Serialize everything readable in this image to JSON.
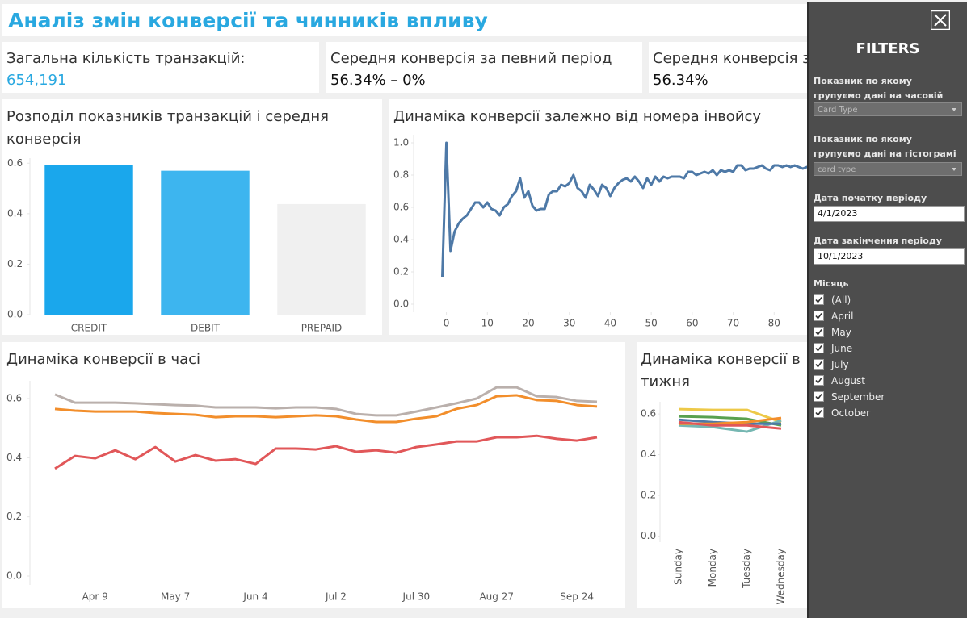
{
  "header": {
    "title": "Аналіз змін конверсії та чинників впливу"
  },
  "kpis": [
    {
      "label": "Загальна кількість транзакцій:",
      "value": "654,191"
    },
    {
      "label": "Середня конверсія за певний період",
      "value": "56.34% – 0%"
    },
    {
      "label": "Середня конверсія з",
      "value": "56.34%"
    }
  ],
  "chart_data": [
    {
      "type": "bar",
      "title": "Розподіл показників транзакцій і середня конверсія",
      "categories": [
        "CREDIT",
        "DEBIT",
        "PREPAID"
      ],
      "values": [
        0.593,
        0.57,
        0.438
      ],
      "colors": [
        "#1aa7ec",
        "#3db5ef",
        "#f0f0f0"
      ],
      "ylim": [
        0,
        0.62
      ],
      "yticks": [
        {
          "value": 0,
          "label": "0.0"
        },
        0.2,
        0.4,
        0.6
      ],
      "grid": false
    },
    {
      "type": "line",
      "title": "Динаміка конверсії залежно від номера інвойсу",
      "x": [
        -1,
        0,
        1,
        2,
        3,
        4,
        5,
        6,
        7,
        8,
        9,
        10,
        11,
        12,
        13,
        14,
        15,
        16,
        17,
        18,
        19,
        20,
        21,
        22,
        23,
        24,
        25,
        26,
        27,
        28,
        29,
        30,
        31,
        32,
        33,
        34,
        35,
        36,
        37,
        38,
        39,
        40,
        41,
        42,
        43,
        44,
        45,
        46,
        47,
        48,
        49,
        50,
        51,
        52,
        53,
        54,
        55,
        56,
        57,
        58,
        59,
        60,
        61,
        62,
        63,
        64,
        65,
        66,
        67,
        68,
        69,
        70,
        71,
        72,
        73,
        74,
        75,
        76,
        77,
        78,
        79,
        80,
        81,
        82,
        83,
        84,
        85,
        86,
        87,
        88,
        89
      ],
      "series": [
        {
          "color": "#4e79a7",
          "values": [
            0.17,
            1.0,
            0.33,
            0.45,
            0.5,
            0.53,
            0.55,
            0.59,
            0.63,
            0.63,
            0.6,
            0.63,
            0.59,
            0.58,
            0.55,
            0.6,
            0.62,
            0.67,
            0.7,
            0.78,
            0.66,
            0.7,
            0.61,
            0.58,
            0.59,
            0.59,
            0.68,
            0.7,
            0.7,
            0.74,
            0.73,
            0.75,
            0.8,
            0.72,
            0.7,
            0.66,
            0.74,
            0.71,
            0.67,
            0.74,
            0.72,
            0.67,
            0.72,
            0.75,
            0.77,
            0.78,
            0.76,
            0.79,
            0.76,
            0.72,
            0.78,
            0.74,
            0.79,
            0.76,
            0.79,
            0.78,
            0.79,
            0.79,
            0.79,
            0.78,
            0.82,
            0.82,
            0.8,
            0.81,
            0.82,
            0.81,
            0.83,
            0.8,
            0.83,
            0.82,
            0.83,
            0.82,
            0.86,
            0.86,
            0.83,
            0.84,
            0.84,
            0.85,
            0.86,
            0.84,
            0.83,
            0.86,
            0.86,
            0.85,
            0.86,
            0.85,
            0.86,
            0.85,
            0.84,
            0.85,
            0.85
          ]
        }
      ],
      "xlim": [
        -8,
        90
      ],
      "xticks": [
        0,
        10,
        20,
        30,
        40,
        50,
        60,
        70,
        80
      ],
      "ylim": [
        -0.05,
        1.05
      ],
      "yticks": [
        {
          "value": 0,
          "label": "0.0"
        },
        0.2,
        0.4,
        0.6,
        0.8,
        {
          "value": 1,
          "label": "1.0"
        }
      ],
      "grid": false
    },
    {
      "type": "line",
      "title": "Динаміка конверсії в часі",
      "categories": [
        null,
        null,
        "Apr 9",
        null,
        null,
        null,
        "May 7",
        null,
        null,
        null,
        "Jun 4",
        null,
        null,
        null,
        "Jul 2",
        null,
        null,
        null,
        "Jul 30",
        null,
        null,
        null,
        "Aug 27",
        null,
        null,
        null,
        "Sep 24",
        null
      ],
      "series": [
        {
          "color": "#bab0ac",
          "values": [
            0.614,
            0.586,
            0.586,
            0.586,
            0.584,
            0.581,
            0.578,
            0.576,
            0.57,
            0.57,
            0.57,
            0.567,
            0.57,
            0.57,
            0.565,
            0.548,
            0.543,
            0.543,
            0.556,
            0.57,
            0.584,
            0.6,
            0.638,
            0.638,
            0.608,
            0.605,
            0.592,
            0.589
          ]
        },
        {
          "color": "#f28e2b",
          "values": [
            0.565,
            0.559,
            0.556,
            0.556,
            0.556,
            0.551,
            0.548,
            0.545,
            0.537,
            0.54,
            0.54,
            0.537,
            0.54,
            0.543,
            0.54,
            0.529,
            0.521,
            0.521,
            0.532,
            0.54,
            0.565,
            0.578,
            0.608,
            0.611,
            0.595,
            0.592,
            0.578,
            0.573
          ]
        },
        {
          "color": "#e15759",
          "values": [
            0.363,
            0.406,
            0.398,
            0.425,
            0.395,
            0.436,
            0.387,
            0.409,
            0.39,
            0.395,
            0.379,
            0.431,
            0.431,
            0.428,
            0.439,
            0.42,
            0.425,
            0.417,
            0.436,
            0.445,
            0.455,
            0.455,
            0.469,
            0.469,
            0.474,
            0.464,
            0.458,
            0.469
          ]
        }
      ],
      "ylim": [
        -0.03,
        0.66
      ],
      "yticks": [
        {
          "value": 0,
          "label": "0.0"
        },
        0.2,
        0.4,
        0.6
      ],
      "grid": false
    },
    {
      "type": "line",
      "title_lines": [
        "Динаміка конверсії в",
        "тижня"
      ],
      "categories": [
        "Sunday",
        "Monday",
        "Tuesday",
        "Wednesday"
      ],
      "series": [
        {
          "color": "#edc948",
          "values": [
            0.624,
            0.62,
            0.62,
            0.56
          ]
        },
        {
          "color": "#59a14f",
          "values": [
            0.588,
            0.584,
            0.576,
            0.544
          ]
        },
        {
          "color": "#76b7b2",
          "values": [
            0.544,
            0.536,
            0.513,
            0.568
          ]
        },
        {
          "color": "#4e79a7",
          "values": [
            0.572,
            0.56,
            0.552,
            0.552
          ]
        },
        {
          "color": "#f28e2b",
          "values": [
            0.552,
            0.552,
            0.56,
            0.58
          ]
        },
        {
          "color": "#e15759",
          "values": [
            0.56,
            0.544,
            0.544,
            0.528
          ]
        }
      ],
      "ylim": [
        -0.03,
        0.66
      ],
      "yticks": [
        {
          "value": 0,
          "label": "0.0"
        },
        0.2,
        0.4,
        0.6
      ],
      "grid": false
    }
  ],
  "filters": {
    "title": "FILTERS",
    "fields": [
      {
        "label": "Показник по якому групуємо дані на часовій діаграмі",
        "value": "Card Type"
      },
      {
        "label": "Показник по якому групуємо дані на гістограмі",
        "value": "card type"
      },
      {
        "label": "Дата початку періоду",
        "value": "4/1/2023"
      },
      {
        "label": "Дата закінчення періоду",
        "value": "10/1/2023"
      }
    ],
    "month": {
      "label": "Місяць",
      "options": [
        "(All)",
        "April",
        "May",
        "June",
        "July",
        "August",
        "September",
        "October"
      ]
    }
  }
}
